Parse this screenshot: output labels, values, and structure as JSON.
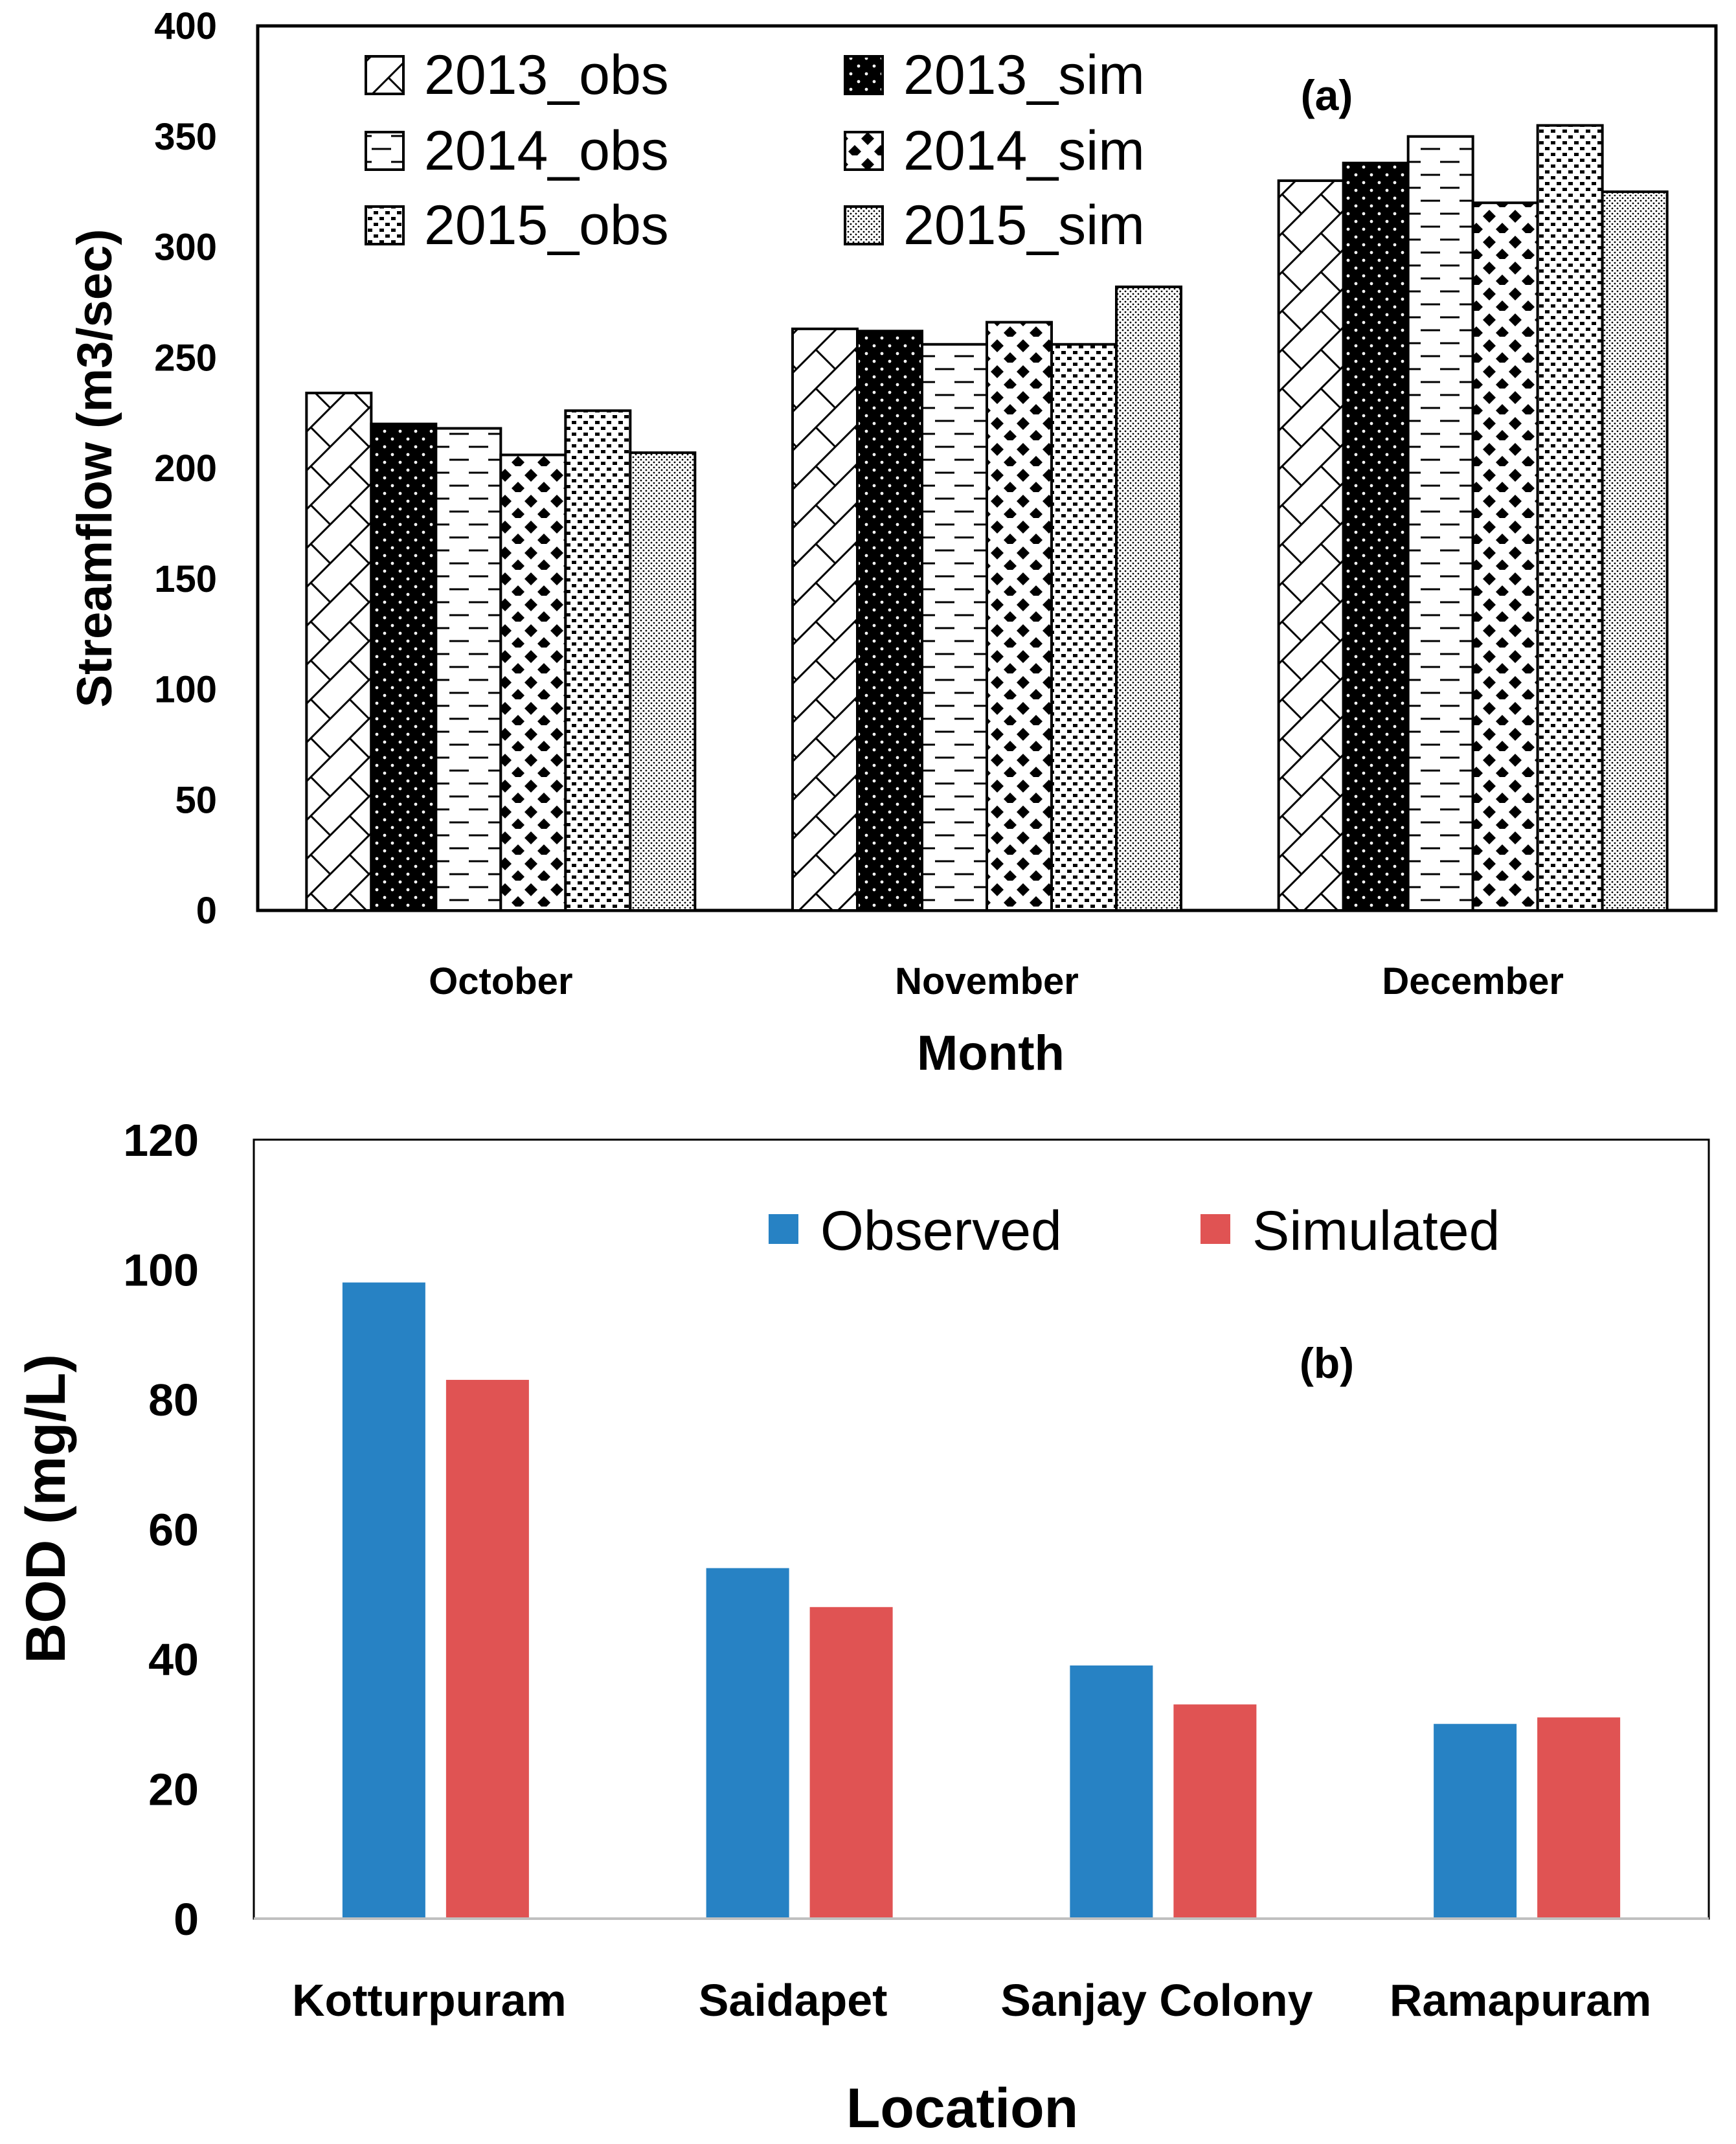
{
  "colors": {
    "observed": "#2782c4",
    "simulated": "#e05353",
    "axis": "#000000",
    "axis_gray": "#c0c0c0"
  },
  "chart_data": [
    {
      "type": "bar",
      "panel_label": "(a)",
      "title": "",
      "xlabel": "Month",
      "ylabel": "Streamflow (m3/sec)",
      "ylim": [
        0,
        400
      ],
      "yticks": [
        "0",
        "50",
        "100",
        "150",
        "200",
        "250",
        "300",
        "350",
        "400"
      ],
      "categories": [
        "October",
        "November",
        "December"
      ],
      "legend_position": "top-left",
      "series": [
        {
          "name": "2013_obs",
          "pattern": "hatch-diagonal",
          "values": [
            234,
            263,
            330
          ]
        },
        {
          "name": "2013_sim",
          "pattern": "black-dots",
          "values": [
            220,
            262,
            338
          ]
        },
        {
          "name": "2014_obs",
          "pattern": "dashes",
          "values": [
            218,
            256,
            350
          ]
        },
        {
          "name": "2014_sim",
          "pattern": "diamonds",
          "values": [
            206,
            266,
            320
          ]
        },
        {
          "name": "2015_obs",
          "pattern": "dense-dots",
          "values": [
            226,
            256,
            355
          ]
        },
        {
          "name": "2015_sim",
          "pattern": "fine-dots",
          "values": [
            207,
            282,
            325
          ]
        }
      ]
    },
    {
      "type": "bar",
      "panel_label": "(b)",
      "title": "",
      "xlabel": "Location",
      "ylabel": "BOD (mg/L)",
      "ylim": [
        0,
        120
      ],
      "yticks": [
        "0",
        "20",
        "40",
        "60",
        "80",
        "100",
        "120"
      ],
      "categories": [
        "Kotturpuram",
        "Saidapet",
        "Sanjay Colony",
        "Ramapuram"
      ],
      "legend_position": "top-right",
      "series": [
        {
          "name": "Observed",
          "values": [
            98,
            54,
            39,
            30
          ]
        },
        {
          "name": "Simulated",
          "values": [
            83,
            48,
            33,
            31
          ]
        }
      ]
    }
  ]
}
